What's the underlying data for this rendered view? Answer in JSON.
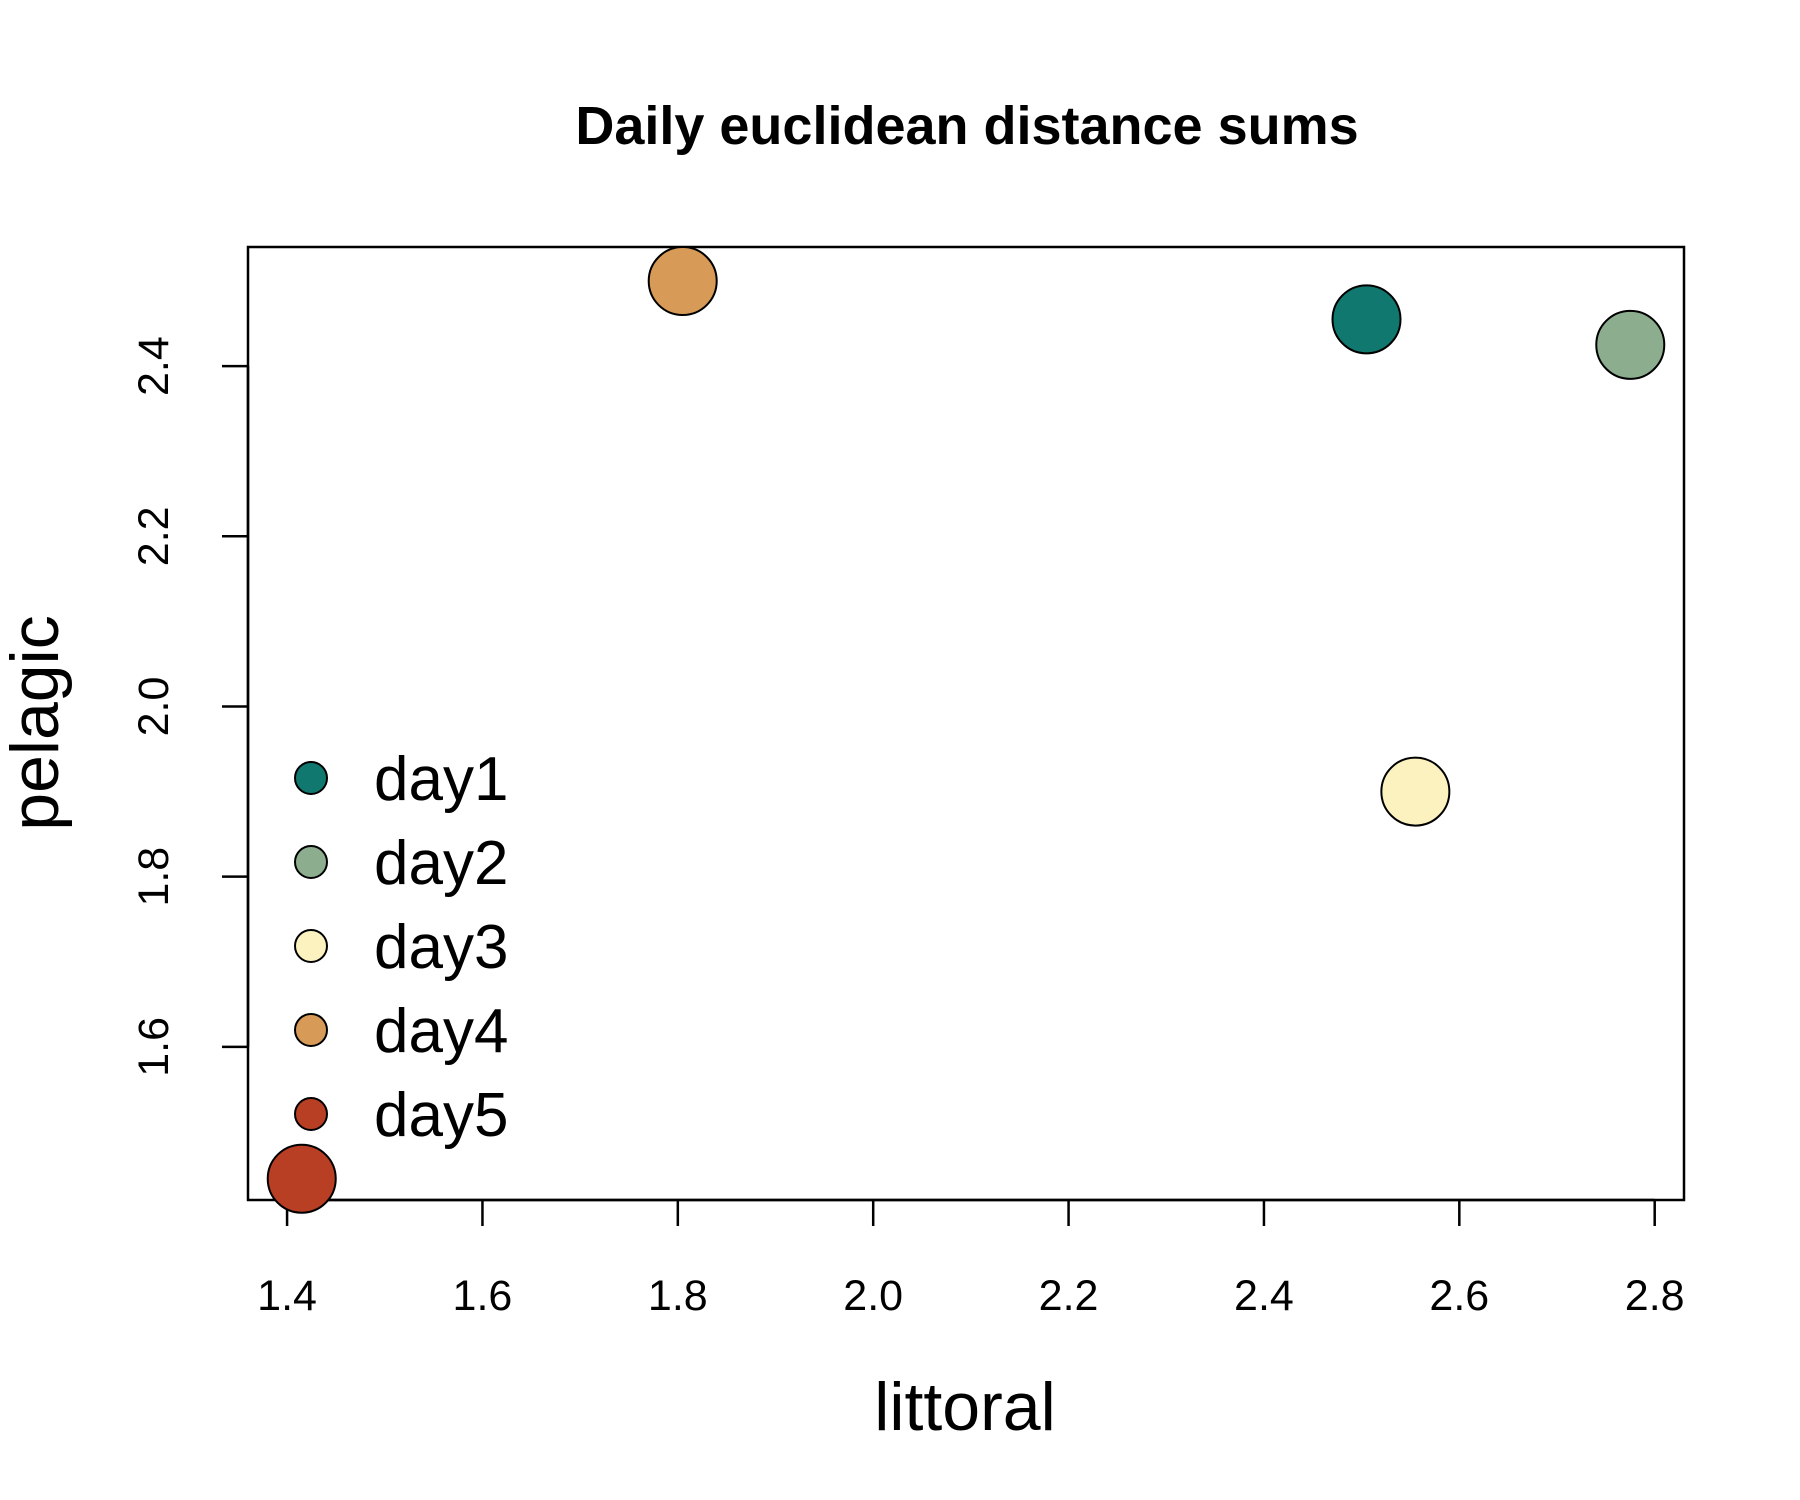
{
  "chart_data": {
    "type": "scatter",
    "title": "Daily euclidean distance sums",
    "xlabel": "littoral",
    "ylabel": "pelagic",
    "xlim": [
      1.36,
      2.83
    ],
    "ylim": [
      1.42,
      2.54
    ],
    "xticks": [
      "1.4",
      "1.6",
      "1.8",
      "2.0",
      "2.2",
      "2.4",
      "2.6",
      "2.8"
    ],
    "yticks": [
      "1.6",
      "1.8",
      "2.0",
      "2.2",
      "2.4"
    ],
    "grid": false,
    "legend_position": "bottom-left",
    "series": [
      {
        "name": "day1",
        "color": "#11786f",
        "x": 2.505,
        "y": 2.455
      },
      {
        "name": "day2",
        "color": "#8cae8f",
        "x": 2.775,
        "y": 2.425
      },
      {
        "name": "day3",
        "color": "#fcf2c0",
        "x": 2.555,
        "y": 1.9
      },
      {
        "name": "day4",
        "color": "#d79b57",
        "x": 1.805,
        "y": 2.5
      },
      {
        "name": "day5",
        "color": "#b93f24",
        "x": 1.415,
        "y": 1.445
      }
    ]
  }
}
